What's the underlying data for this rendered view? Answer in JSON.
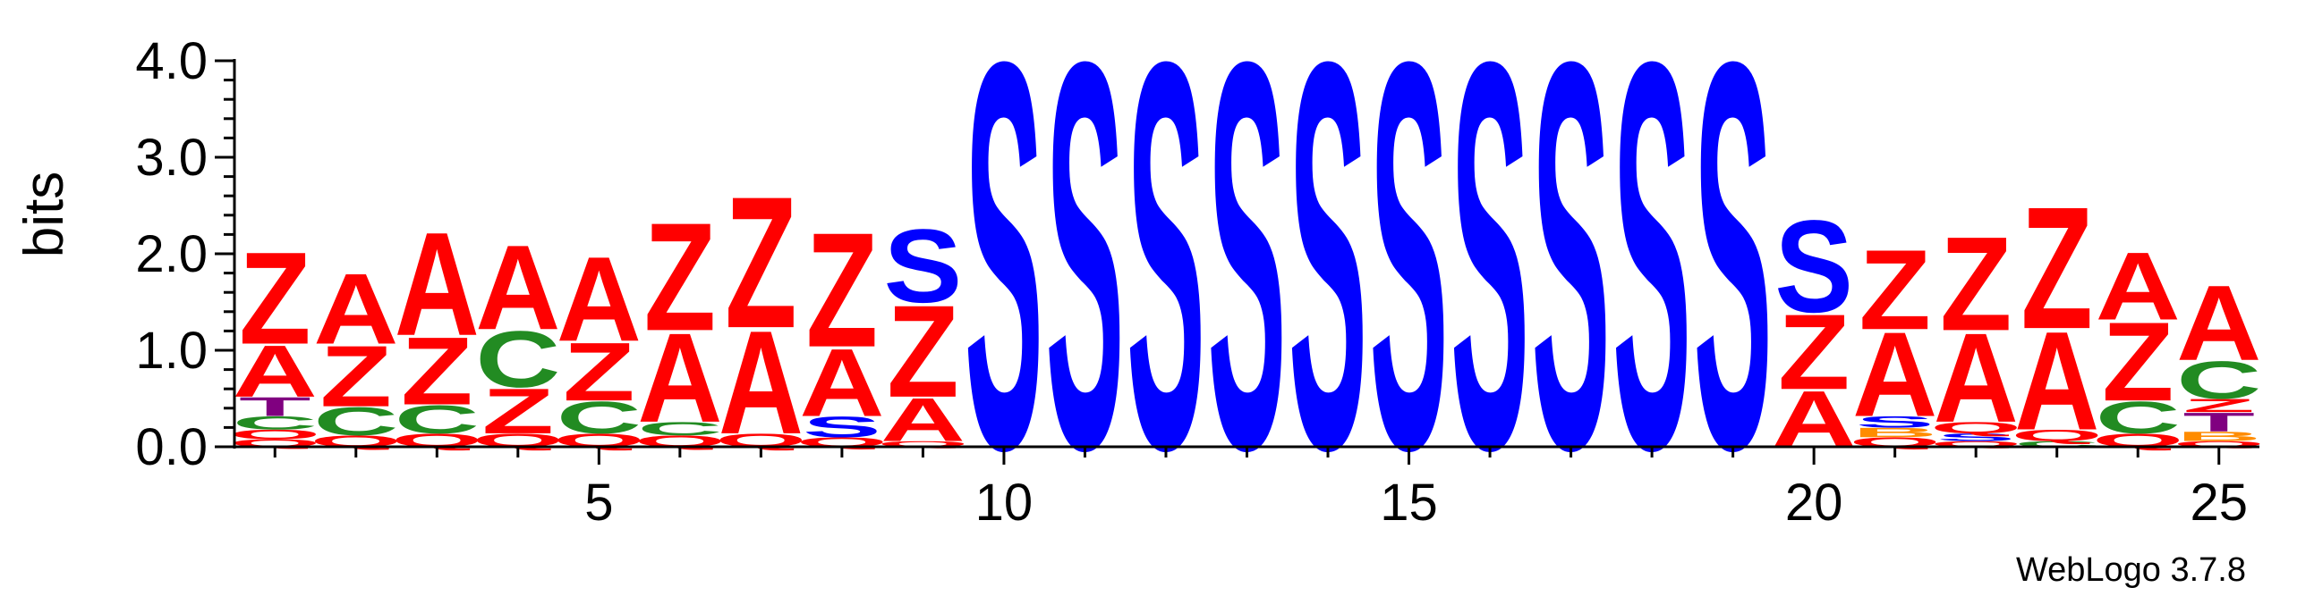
{
  "chart_data": {
    "type": "sequence-logo",
    "ylabel": "bits",
    "ylim": [
      0,
      4.0
    ],
    "yticks": [
      "0.0",
      "1.0",
      "2.0",
      "3.0",
      "4.0"
    ],
    "xticks": [
      "5",
      "10",
      "15",
      "20",
      "25"
    ],
    "xtick_positions": [
      5,
      10,
      15,
      20,
      25
    ],
    "footer": "WebLogo 3.7.8",
    "colors": {
      "Z": "#ff0000",
      "A": "#ff0000",
      "Q": "#ff0000",
      "S": "#0000ff",
      "C": "#228b22",
      "T": "#800080",
      "B": "#ff8c00"
    },
    "positions": [
      {
        "pos": 1,
        "letters": [
          [
            "Q",
            0.08
          ],
          [
            "O",
            0.1
          ],
          [
            "C",
            0.14
          ],
          [
            "T",
            0.2
          ],
          [
            "A",
            0.55
          ],
          [
            "Z",
            0.98
          ]
        ]
      },
      {
        "pos": 2,
        "letters": [
          [
            "Q",
            0.12
          ],
          [
            "C",
            0.3
          ],
          [
            "Z",
            0.65
          ],
          [
            "A",
            0.75
          ]
        ]
      },
      {
        "pos": 3,
        "letters": [
          [
            "Q",
            0.14
          ],
          [
            "C",
            0.3
          ],
          [
            "Z",
            0.72
          ],
          [
            "A",
            1.1
          ]
        ]
      },
      {
        "pos": 4,
        "letters": [
          [
            "Q",
            0.14
          ],
          [
            "Z",
            0.48
          ],
          [
            "C",
            0.6
          ],
          [
            "A",
            0.9
          ]
        ]
      },
      {
        "pos": 5,
        "letters": [
          [
            "Q",
            0.14
          ],
          [
            "C",
            0.34
          ],
          [
            "Z",
            0.62
          ],
          [
            "A",
            0.9
          ]
        ]
      },
      {
        "pos": 6,
        "letters": [
          [
            "Q",
            0.12
          ],
          [
            "C",
            0.14
          ],
          [
            "A",
            0.95
          ],
          [
            "Z",
            1.15
          ]
        ]
      },
      {
        "pos": 7,
        "letters": [
          [
            "Q",
            0.14
          ],
          [
            "A",
            1.1
          ],
          [
            "Z",
            1.4
          ]
        ]
      },
      {
        "pos": 8,
        "letters": [
          [
            "Q",
            0.1
          ],
          [
            "S",
            0.22
          ],
          [
            "A",
            0.72
          ],
          [
            "Z",
            1.22
          ]
        ]
      },
      {
        "pos": 9,
        "letters": [
          [
            "Q",
            0.06
          ],
          [
            "A",
            0.46
          ],
          [
            "Z",
            0.98
          ],
          [
            "S",
            0.78
          ]
        ]
      },
      {
        "pos": 10,
        "letters": [
          [
            "S",
            4.12
          ]
        ]
      },
      {
        "pos": 11,
        "letters": [
          [
            "S",
            4.12
          ]
        ]
      },
      {
        "pos": 12,
        "letters": [
          [
            "S",
            4.12
          ]
        ]
      },
      {
        "pos": 13,
        "letters": [
          [
            "S",
            4.12
          ]
        ]
      },
      {
        "pos": 14,
        "letters": [
          [
            "S",
            4.12
          ]
        ]
      },
      {
        "pos": 15,
        "letters": [
          [
            "S",
            4.12
          ]
        ]
      },
      {
        "pos": 16,
        "letters": [
          [
            "S",
            4.12
          ]
        ]
      },
      {
        "pos": 17,
        "letters": [
          [
            "S",
            4.12
          ]
        ]
      },
      {
        "pos": 18,
        "letters": [
          [
            "S",
            4.12
          ]
        ]
      },
      {
        "pos": 19,
        "letters": [
          [
            "S",
            4.12
          ]
        ]
      },
      {
        "pos": 20,
        "letters": [
          [
            "A",
            0.6
          ],
          [
            "Z",
            0.8
          ],
          [
            "S",
            0.98
          ]
        ]
      },
      {
        "pos": 21,
        "letters": [
          [
            "Q",
            0.1
          ],
          [
            "B",
            0.1
          ],
          [
            "S",
            0.12
          ],
          [
            "A",
            0.9
          ],
          [
            "Z",
            0.85
          ]
        ]
      },
      {
        "pos": 22,
        "letters": [
          [
            "Q",
            0.06
          ],
          [
            "S",
            0.08
          ],
          [
            "Q",
            0.12
          ],
          [
            "A",
            0.95
          ],
          [
            "Z",
            1.0
          ]
        ]
      },
      {
        "pos": 23,
        "letters": [
          [
            "C",
            0.06
          ],
          [
            "Q",
            0.12
          ],
          [
            "A",
            1.05
          ],
          [
            "Z",
            1.3
          ]
        ]
      },
      {
        "pos": 24,
        "letters": [
          [
            "Q",
            0.14
          ],
          [
            "C",
            0.34
          ],
          [
            "Z",
            0.84
          ],
          [
            "A",
            0.72
          ]
        ]
      },
      {
        "pos": 25,
        "letters": [
          [
            "Q",
            0.06
          ],
          [
            "B",
            0.1
          ],
          [
            "T",
            0.2
          ],
          [
            "Z",
            0.14
          ],
          [
            "C",
            0.4
          ],
          [
            "A",
            0.8
          ]
        ]
      }
    ]
  }
}
